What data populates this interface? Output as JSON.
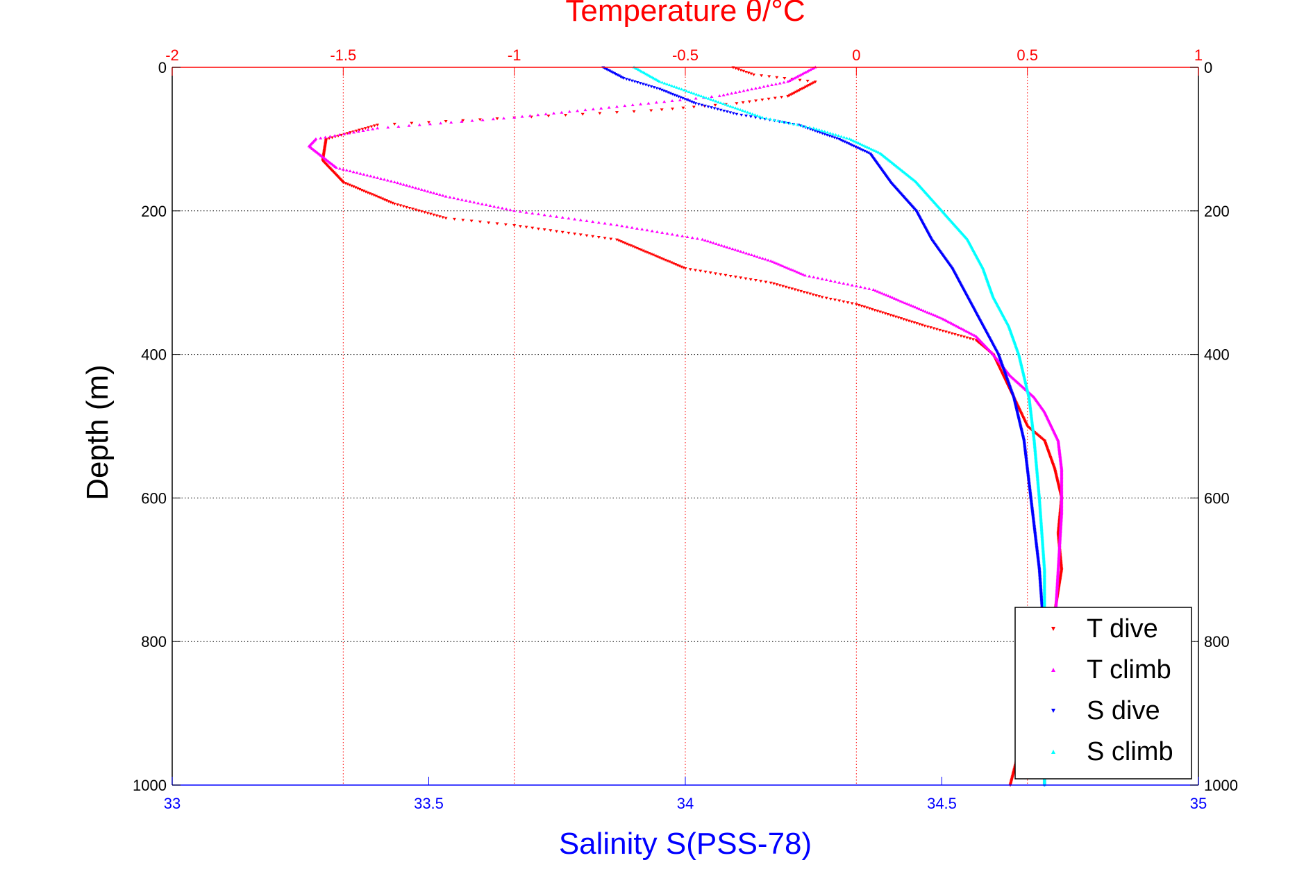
{
  "colors": {
    "t_dive": "#ff0000",
    "t_climb": "#ff00ff",
    "s_dive": "#0000ff",
    "s_climb": "#00ffff",
    "temperature_axis": "#ff0000",
    "salinity_axis": "#0000ff",
    "depth_axis": "#000000",
    "grid_vertical": "#ff0000",
    "grid_horizontal": "#000000"
  },
  "chart_data": {
    "type": "scatter",
    "title": "Temperature θ/°C",
    "xlabel": "Salinity S(PSS-78)",
    "ylabel": "Depth (m)",
    "temperature_axis": {
      "label": "Temperature θ/°C",
      "position": "top",
      "range": [
        -2,
        1
      ],
      "ticks": [
        -2,
        -1.5,
        -1,
        -0.5,
        0,
        0.5,
        1
      ],
      "tick_labels": [
        "-2",
        "-1.5",
        "-1",
        "-0.5",
        "0",
        "0.5",
        "1"
      ]
    },
    "salinity_axis": {
      "label": "Salinity S(PSS-78)",
      "position": "bottom",
      "range": [
        33,
        35
      ],
      "ticks": [
        33,
        33.5,
        34,
        34.5,
        35
      ],
      "tick_labels": [
        "33",
        "33.5",
        "34",
        "34.5",
        "35"
      ]
    },
    "depth_axis": {
      "label": "Depth (m)",
      "range": [
        0,
        1000
      ],
      "reversed": true,
      "ticks": [
        0,
        200,
        400,
        600,
        800,
        1000
      ],
      "tick_labels": [
        "0",
        "200",
        "400",
        "600",
        "800",
        "1000"
      ]
    },
    "grid": true,
    "legend": {
      "placement": "bottom-right",
      "entries": [
        "T dive",
        "T climb",
        "S dive",
        "S climb"
      ]
    },
    "series": [
      {
        "name": "T dive",
        "axis": "temperature",
        "marker": "triangle-down",
        "x": [
          -0.36,
          -0.3,
          -0.12,
          -0.2,
          -0.35,
          -0.6,
          -1.0,
          -1.4,
          -1.55,
          -1.56,
          -1.5,
          -1.35,
          -1.2,
          -1.0,
          -0.7,
          -0.6,
          -0.5,
          -0.25,
          -0.1,
          0.0,
          0.1,
          0.2,
          0.35,
          0.4,
          0.42,
          0.45,
          0.5,
          0.55,
          0.58,
          0.6,
          0.59,
          0.6,
          0.58,
          0.45
        ],
        "y": [
          0,
          10,
          20,
          40,
          50,
          60,
          70,
          80,
          100,
          130,
          160,
          190,
          210,
          220,
          240,
          260,
          280,
          300,
          320,
          330,
          345,
          360,
          380,
          400,
          420,
          450,
          500,
          520,
          560,
          600,
          650,
          700,
          760,
          1000
        ]
      },
      {
        "name": "T climb",
        "axis": "temperature",
        "marker": "triangle-up",
        "x": [
          -0.12,
          -0.2,
          -0.4,
          -0.7,
          -1.0,
          -1.4,
          -1.58,
          -1.6,
          -1.52,
          -1.35,
          -1.2,
          -1.0,
          -0.7,
          -0.45,
          -0.25,
          -0.15,
          -0.05,
          0.05,
          0.1,
          0.25,
          0.35,
          0.4,
          0.45,
          0.52,
          0.55,
          0.59,
          0.6,
          0.6,
          0.59,
          0.58
        ],
        "y": [
          0,
          20,
          40,
          55,
          70,
          85,
          100,
          110,
          140,
          160,
          180,
          200,
          220,
          240,
          270,
          290,
          300,
          310,
          320,
          350,
          375,
          400,
          430,
          460,
          480,
          520,
          560,
          620,
          700,
          780
        ]
      },
      {
        "name": "S dive",
        "axis": "salinity",
        "marker": "triangle-down",
        "x": [
          33.84,
          33.88,
          33.95,
          34.02,
          34.1,
          34.22,
          34.3,
          34.36,
          34.4,
          34.45,
          34.48,
          34.52,
          34.55,
          34.58,
          34.61,
          34.64,
          34.66,
          34.67,
          34.68,
          34.69,
          34.7,
          34.7
        ],
        "y": [
          0,
          15,
          30,
          50,
          65,
          80,
          100,
          120,
          160,
          200,
          240,
          280,
          320,
          360,
          400,
          460,
          520,
          580,
          640,
          700,
          800,
          1000
        ]
      },
      {
        "name": "S climb",
        "axis": "salinity",
        "marker": "triangle-up",
        "x": [
          33.9,
          33.95,
          34.05,
          34.15,
          34.25,
          34.32,
          34.38,
          34.45,
          34.5,
          34.55,
          34.58,
          34.6,
          34.63,
          34.65,
          34.67,
          34.68,
          34.69,
          34.7,
          34.7
        ],
        "y": [
          0,
          20,
          45,
          70,
          85,
          100,
          120,
          160,
          200,
          240,
          280,
          320,
          360,
          400,
          460,
          520,
          600,
          700,
          1000
        ]
      }
    ]
  }
}
